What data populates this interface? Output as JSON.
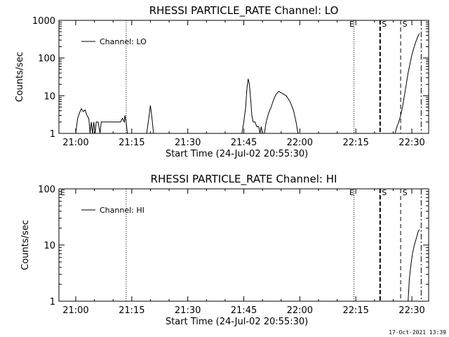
{
  "footer": {
    "timestamp": "17-Oct-2021 13:39"
  },
  "chart_data": [
    {
      "type": "line",
      "title": "RHESSI PARTICLE_RATE Channel: LO",
      "xlabel": "Start Time (24-Jul-02 20:55:30)",
      "ylabel": "Counts/sec",
      "yscale": "log",
      "ylim": [
        1,
        1000
      ],
      "xlim": [
        "20:55:30",
        "22:34:30"
      ],
      "x_ticks": [
        "21:00",
        "21:15",
        "21:30",
        "21:45",
        "22:00",
        "22:15",
        "22:30"
      ],
      "y_ticks": [
        "1",
        "10",
        "100",
        "1000"
      ],
      "legend": {
        "position": "top-left",
        "entries": [
          "Channel: LO"
        ]
      },
      "markers": [
        {
          "label": "",
          "time": "21:13:30",
          "style": "dotted"
        },
        {
          "label": "E",
          "time": "22:14:30",
          "style": "dotted"
        },
        {
          "label": "S",
          "time": "22:21:30",
          "style": "dashed-thick"
        },
        {
          "label": "S",
          "time": "22:27:00",
          "style": "dashed"
        },
        {
          "label": "",
          "time": "22:32:30",
          "style": "dashdot"
        }
      ],
      "series": [
        {
          "name": "Channel: LO",
          "segments": [
            [
              [
                "21:00:00",
                1
              ],
              [
                "21:00:30",
                2.5
              ],
              [
                "21:01:00",
                3.5
              ],
              [
                "21:01:30",
                4.5
              ],
              [
                "21:02:00",
                3.8
              ],
              [
                "21:02:30",
                4.2
              ],
              [
                "21:03:00",
                3
              ],
              [
                "21:03:30",
                2.5
              ],
              [
                "21:03:50",
                1
              ],
              [
                "21:04:10",
                2
              ],
              [
                "21:04:30",
                1
              ],
              [
                "21:04:50",
                2
              ],
              [
                "21:05:10",
                1
              ],
              [
                "21:05:30",
                2
              ],
              [
                "21:06:00",
                2
              ],
              [
                "21:06:30",
                1
              ],
              [
                "21:06:50",
                2
              ],
              [
                "21:07:30",
                2
              ],
              [
                "21:09:00",
                2
              ],
              [
                "21:10:30",
                2
              ],
              [
                "21:12:00",
                2
              ],
              [
                "21:12:30",
                2.5
              ],
              [
                "21:13:00",
                2
              ],
              [
                "21:13:10",
                3
              ],
              [
                "21:13:30",
                2
              ],
              [
                "21:13:50",
                1
              ]
            ],
            [
              [
                "21:19:00",
                1
              ],
              [
                "21:19:40",
                3
              ],
              [
                "21:20:00",
                5.5
              ],
              [
                "21:20:20",
                3
              ],
              [
                "21:20:50",
                1
              ]
            ],
            [
              [
                "21:44:30",
                1
              ],
              [
                "21:45:00",
                2
              ],
              [
                "21:45:30",
                5
              ],
              [
                "21:45:50",
                15
              ],
              [
                "21:46:10",
                28
              ],
              [
                "21:46:30",
                20
              ],
              [
                "21:46:50",
                8
              ],
              [
                "21:47:10",
                3
              ],
              [
                "21:47:30",
                2
              ],
              [
                "21:48:00",
                2
              ],
              [
                "21:48:30",
                1.5
              ],
              [
                "21:49:00",
                1.5
              ],
              [
                "21:49:20",
                1
              ],
              [
                "21:49:40",
                1.5
              ],
              [
                "21:50:00",
                1
              ]
            ],
            [
              [
                "21:50:30",
                1
              ],
              [
                "21:51:00",
                2
              ],
              [
                "21:51:40",
                3.5
              ],
              [
                "21:52:20",
                5
              ],
              [
                "21:53:00",
                8
              ],
              [
                "21:53:40",
                11
              ],
              [
                "21:54:20",
                13
              ],
              [
                "21:55:00",
                12
              ],
              [
                "21:55:40",
                11
              ],
              [
                "21:56:20",
                10
              ],
              [
                "21:57:00",
                8
              ],
              [
                "21:57:40",
                6
              ],
              [
                "21:58:20",
                4
              ],
              [
                "21:59:00",
                2
              ],
              [
                "21:59:30",
                1
              ]
            ],
            [
              [
                "22:25:30",
                1
              ],
              [
                "22:26:00",
                1.5
              ],
              [
                "22:26:30",
                2
              ],
              [
                "22:27:00",
                3
              ],
              [
                "22:27:30",
                5
              ],
              [
                "22:28:00",
                10
              ],
              [
                "22:28:30",
                20
              ],
              [
                "22:29:00",
                40
              ],
              [
                "22:29:30",
                70
              ],
              [
                "22:30:00",
                120
              ],
              [
                "22:30:30",
                180
              ],
              [
                "22:31:00",
                260
              ],
              [
                "22:31:30",
                350
              ],
              [
                "22:32:00",
                450
              ]
            ]
          ]
        }
      ]
    },
    {
      "type": "line",
      "title": "RHESSI PARTICLE_RATE Channel: HI",
      "xlabel": "Start Time (24-Jul-02 20:55:30)",
      "ylabel": "Counts/sec",
      "yscale": "log",
      "ylim": [
        1,
        100
      ],
      "xlim": [
        "20:55:30",
        "22:34:30"
      ],
      "x_ticks": [
        "21:00",
        "21:15",
        "21:30",
        "21:45",
        "22:00",
        "22:15",
        "22:30"
      ],
      "y_ticks": [
        "1",
        "10",
        "100"
      ],
      "legend": {
        "position": "top-left",
        "entries": [
          "Channel: HI"
        ]
      },
      "markers": [
        {
          "label": "E",
          "time": "20:55:30",
          "style": "none"
        },
        {
          "label": "",
          "time": "21:13:30",
          "style": "dotted"
        },
        {
          "label": "E",
          "time": "22:14:30",
          "style": "dotted"
        },
        {
          "label": "S",
          "time": "22:21:30",
          "style": "dashed-thick"
        },
        {
          "label": "S",
          "time": "22:27:00",
          "style": "dashed"
        },
        {
          "label": "",
          "time": "22:32:30",
          "style": "dashdot"
        }
      ],
      "series": [
        {
          "name": "Channel: HI",
          "segments": [
            [
              [
                "22:29:00",
                1
              ],
              [
                "22:29:20",
                2.5
              ],
              [
                "22:29:40",
                4
              ],
              [
                "22:30:10",
                7
              ],
              [
                "22:30:40",
                10
              ],
              [
                "22:31:10",
                13
              ],
              [
                "22:31:40",
                17
              ],
              [
                "22:32:00",
                19
              ]
            ]
          ]
        }
      ]
    }
  ]
}
